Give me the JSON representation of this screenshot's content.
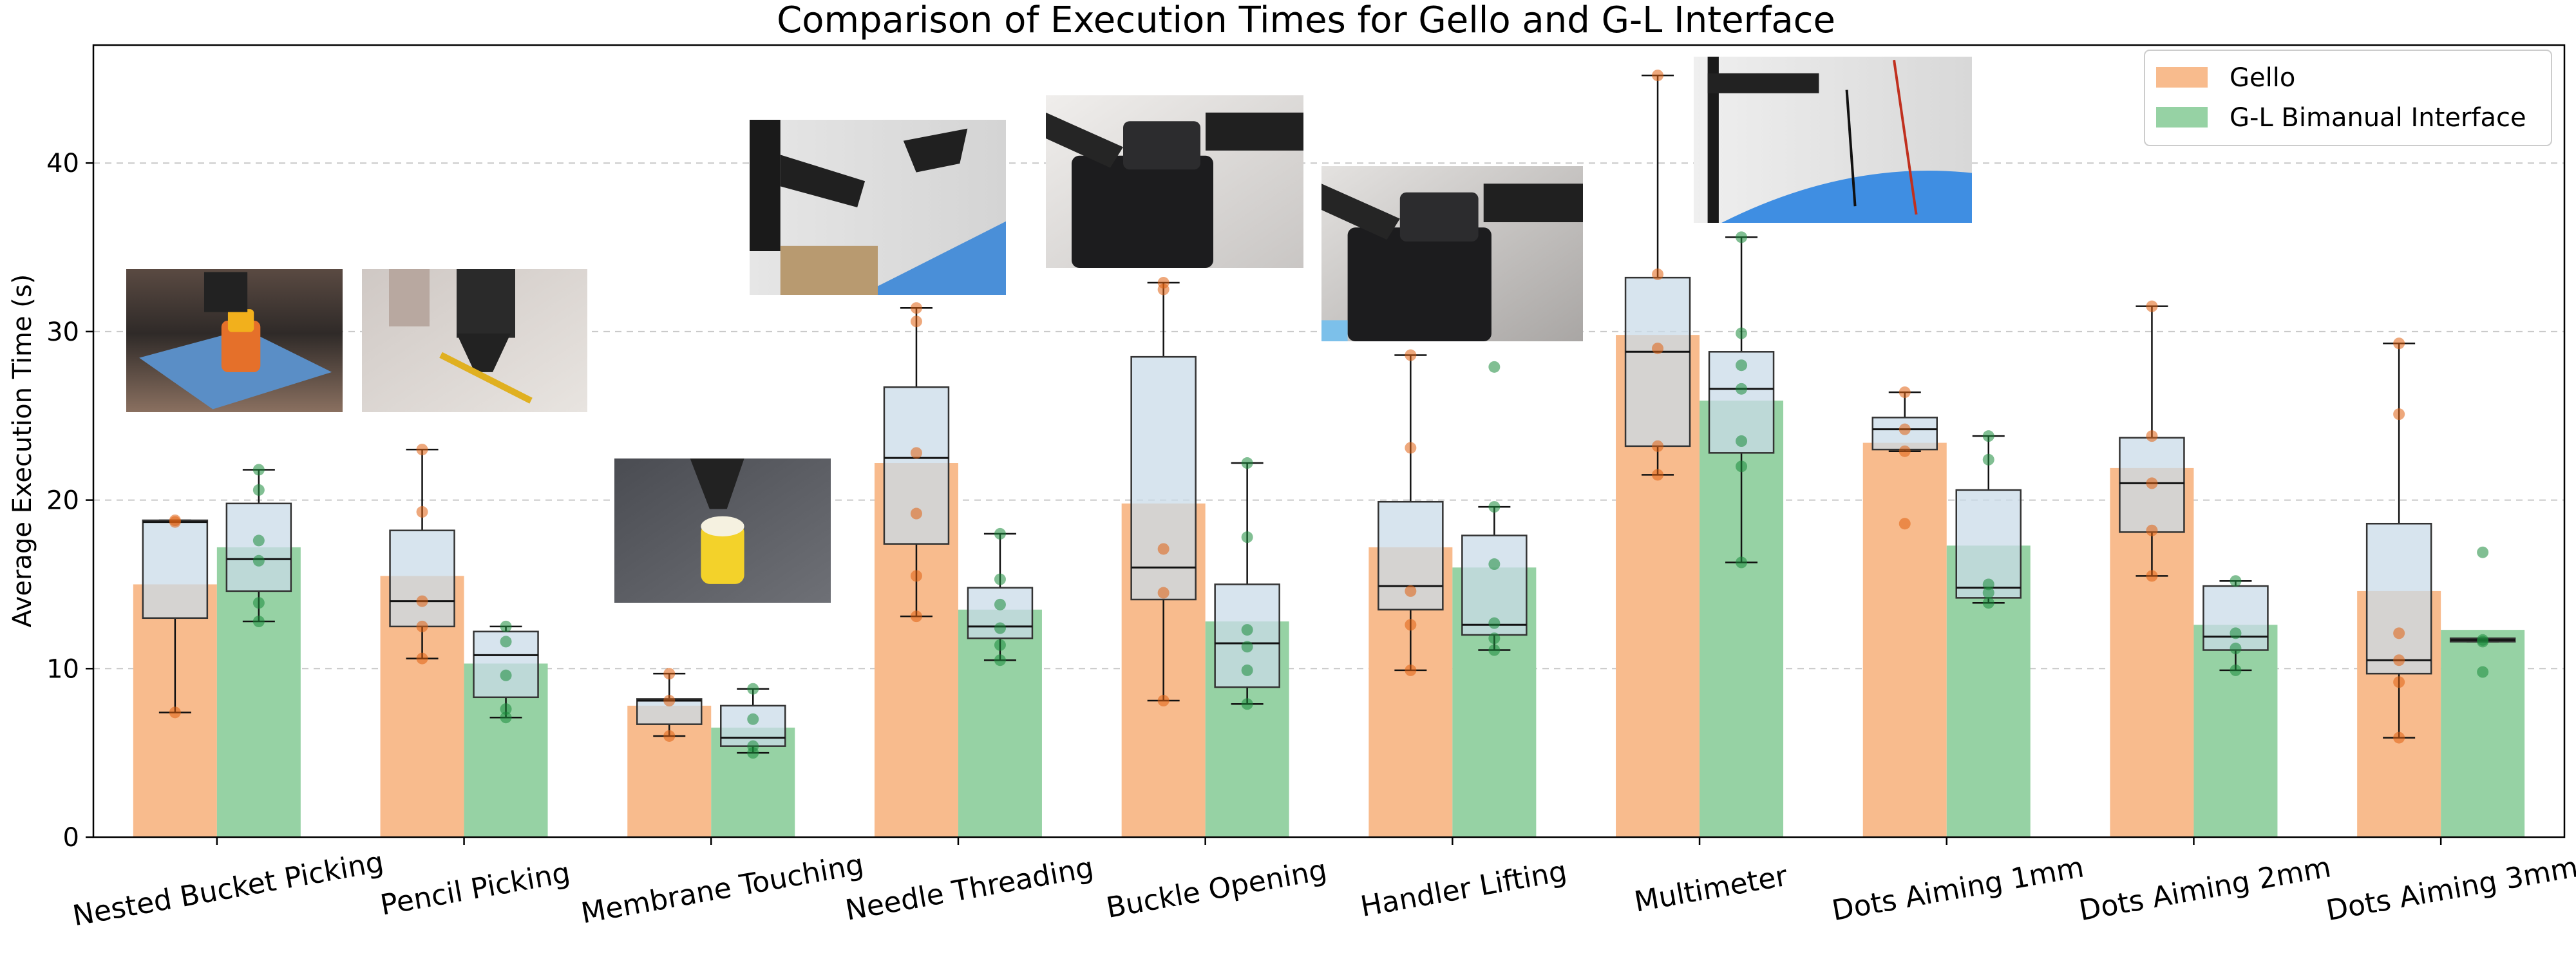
{
  "chart_data": {
    "type": "bar",
    "title": "Comparison of Execution Times for Gello and G-L Interface",
    "ylabel": "Average Execution Time (s)",
    "xlabel": "",
    "ylim": [
      0,
      47
    ],
    "yticks": [
      0,
      10,
      20,
      30,
      40
    ],
    "grid": true,
    "legend_position": "top-right",
    "categories": [
      "Nested Bucket Picking",
      "Pencil Picking",
      "Membrane Touching",
      "Needle Threading",
      "Buckle Opening",
      "Handler Lifting",
      "Multimeter",
      "Dots Aiming 1mm",
      "Dots Aiming 2mm",
      "Dots Aiming 3mm"
    ],
    "series": [
      {
        "name": "Gello",
        "color": "#f8bb8d",
        "point_color": "#e06010",
        "values": [
          15.0,
          15.5,
          7.8,
          22.2,
          19.8,
          17.2,
          29.8,
          23.4,
          21.9,
          14.6
        ],
        "boxes": [
          {
            "whisker_low": 7.4,
            "q1": 13.0,
            "median": 18.7,
            "q3": 18.8,
            "whisker_high": 18.8
          },
          {
            "whisker_low": 10.6,
            "q1": 12.5,
            "median": 14.0,
            "q3": 18.2,
            "whisker_high": 23.0
          },
          {
            "whisker_low": 6.0,
            "q1": 6.7,
            "median": 8.1,
            "q3": 8.2,
            "whisker_high": 9.7
          },
          {
            "whisker_low": 13.1,
            "q1": 17.4,
            "median": 22.5,
            "q3": 26.7,
            "whisker_high": 31.4
          },
          {
            "whisker_low": 8.1,
            "q1": 14.1,
            "median": 16.0,
            "q3": 28.5,
            "whisker_high": 32.9
          },
          {
            "whisker_low": 9.9,
            "q1": 13.5,
            "median": 14.9,
            "q3": 19.9,
            "whisker_high": 28.6
          },
          {
            "whisker_low": 21.5,
            "q1": 23.2,
            "median": 28.8,
            "q3": 33.2,
            "whisker_high": 45.2
          },
          {
            "whisker_low": 22.9,
            "q1": 23.0,
            "median": 24.2,
            "q3": 24.9,
            "whisker_high": 26.4
          },
          {
            "whisker_low": 15.5,
            "q1": 18.1,
            "median": 21.0,
            "q3": 23.7,
            "whisker_high": 31.5
          },
          {
            "whisker_low": 5.9,
            "q1": 9.7,
            "median": 10.5,
            "q3": 18.6,
            "whisker_high": 29.3
          }
        ],
        "points": [
          [
            7.4,
            18.8,
            18.7
          ],
          [
            10.6,
            12.5,
            14.0,
            19.3,
            23.0
          ],
          [
            6.0,
            8.1,
            9.7
          ],
          [
            13.1,
            15.5,
            19.2,
            22.8,
            30.6,
            31.4
          ],
          [
            8.1,
            14.5,
            17.1,
            32.9,
            32.5
          ],
          [
            9.9,
            12.6,
            14.6,
            23.1,
            28.6
          ],
          [
            21.5,
            23.2,
            29.0,
            33.4,
            45.2
          ],
          [
            18.6,
            22.9,
            24.2,
            26.4
          ],
          [
            15.5,
            18.2,
            21.0,
            23.8,
            31.5
          ],
          [
            5.9,
            9.2,
            10.5,
            12.1,
            25.1,
            29.3
          ]
        ]
      },
      {
        "name": "G-L Bimanual Interface",
        "color": "#96d2a4",
        "point_color": "#1a8a3a",
        "values": [
          17.2,
          10.3,
          6.5,
          13.5,
          12.8,
          16.0,
          25.9,
          17.3,
          12.6,
          12.3
        ],
        "boxes": [
          {
            "whisker_low": 12.8,
            "q1": 14.6,
            "median": 16.5,
            "q3": 19.8,
            "whisker_high": 21.8
          },
          {
            "whisker_low": 7.1,
            "q1": 8.3,
            "median": 10.8,
            "q3": 12.2,
            "whisker_high": 12.5
          },
          {
            "whisker_low": 5.0,
            "q1": 5.4,
            "median": 5.9,
            "q3": 7.8,
            "whisker_high": 8.8
          },
          {
            "whisker_low": 10.5,
            "q1": 11.8,
            "median": 12.5,
            "q3": 14.8,
            "whisker_high": 18.0
          },
          {
            "whisker_low": 7.9,
            "q1": 8.9,
            "median": 11.5,
            "q3": 15.0,
            "whisker_high": 22.2
          },
          {
            "whisker_low": 11.1,
            "q1": 12.0,
            "median": 12.6,
            "q3": 17.9,
            "whisker_high": 19.6
          },
          {
            "whisker_low": 16.3,
            "q1": 22.8,
            "median": 26.6,
            "q3": 28.8,
            "whisker_high": 35.6
          },
          {
            "whisker_low": 13.9,
            "q1": 14.2,
            "median": 14.8,
            "q3": 20.6,
            "whisker_high": 23.8
          },
          {
            "whisker_low": 9.9,
            "q1": 11.1,
            "median": 11.9,
            "q3": 14.9,
            "whisker_high": 15.2
          },
          {
            "whisker_low": 11.6,
            "q1": 11.6,
            "median": 11.7,
            "q3": 11.8,
            "whisker_high": 11.8
          }
        ],
        "points": [
          [
            12.8,
            13.9,
            16.4,
            17.6,
            20.6,
            21.8
          ],
          [
            7.1,
            7.6,
            9.6,
            11.6,
            12.5
          ],
          [
            5.0,
            5.4,
            7.0,
            8.8
          ],
          [
            10.5,
            11.4,
            12.4,
            13.8,
            15.3,
            18.0
          ],
          [
            7.9,
            9.9,
            11.3,
            12.3,
            17.8,
            22.2
          ],
          [
            11.1,
            11.8,
            12.7,
            16.2,
            19.6,
            27.9
          ],
          [
            16.3,
            22.0,
            23.5,
            26.6,
            28.0,
            29.9,
            35.6
          ],
          [
            13.9,
            14.5,
            15.0,
            22.4,
            23.8
          ],
          [
            9.9,
            11.2,
            12.1,
            15.2
          ],
          [
            9.8,
            11.6,
            11.7,
            16.9
          ]
        ]
      }
    ]
  },
  "photos": [
    {
      "name": "nested-bucket-photo",
      "kind": "bucket"
    },
    {
      "name": "pencil-photo",
      "kind": "pencil"
    },
    {
      "name": "membrane-photo",
      "kind": "membrane"
    },
    {
      "name": "needle-photo",
      "kind": "needle"
    },
    {
      "name": "buckle-photo",
      "kind": "buckle"
    },
    {
      "name": "handler-photo",
      "kind": "handler"
    },
    {
      "name": "multimeter-photo",
      "kind": "multimeter"
    }
  ]
}
